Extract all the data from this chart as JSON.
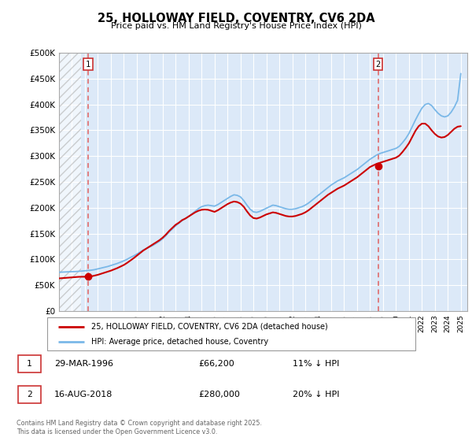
{
  "title": "25, HOLLOWAY FIELD, COVENTRY, CV6 2DA",
  "subtitle": "Price paid vs. HM Land Registry's House Price Index (HPI)",
  "ytick_values": [
    0,
    50000,
    100000,
    150000,
    200000,
    250000,
    300000,
    350000,
    400000,
    450000,
    500000
  ],
  "ylim": [
    0,
    500000
  ],
  "xlim_start": 1994.0,
  "xlim_end": 2025.5,
  "background_color": "#dce9f8",
  "grid_color": "#ffffff",
  "line_hpi_color": "#7ab8e8",
  "line_price_color": "#cc0000",
  "vline1_x": 1996.24,
  "vline2_x": 2018.62,
  "marker1_x": 1996.24,
  "marker1_y": 66200,
  "marker2_x": 2018.62,
  "marker2_y": 280000,
  "legend_line1": "25, HOLLOWAY FIELD, COVENTRY, CV6 2DA (detached house)",
  "legend_line2": "HPI: Average price, detached house, Coventry",
  "table_rows": [
    [
      "1",
      "29-MAR-1996",
      "£66,200",
      "11% ↓ HPI"
    ],
    [
      "2",
      "16-AUG-2018",
      "£280,000",
      "20% ↓ HPI"
    ]
  ],
  "footer": "Contains HM Land Registry data © Crown copyright and database right 2025.\nThis data is licensed under the Open Government Licence v3.0.",
  "hpi_x": [
    1994,
    1994.25,
    1994.5,
    1994.75,
    1995,
    1995.25,
    1995.5,
    1995.75,
    1996,
    1996.25,
    1996.5,
    1996.75,
    1997,
    1997.25,
    1997.5,
    1997.75,
    1998,
    1998.25,
    1998.5,
    1998.75,
    1999,
    1999.25,
    1999.5,
    1999.75,
    2000,
    2000.25,
    2000.5,
    2000.75,
    2001,
    2001.25,
    2001.5,
    2001.75,
    2002,
    2002.25,
    2002.5,
    2002.75,
    2003,
    2003.25,
    2003.5,
    2003.75,
    2004,
    2004.25,
    2004.5,
    2004.75,
    2005,
    2005.25,
    2005.5,
    2005.75,
    2006,
    2006.25,
    2006.5,
    2006.75,
    2007,
    2007.25,
    2007.5,
    2007.75,
    2008,
    2008.25,
    2008.5,
    2008.75,
    2009,
    2009.25,
    2009.5,
    2009.75,
    2010,
    2010.25,
    2010.5,
    2010.75,
    2011,
    2011.25,
    2011.5,
    2011.75,
    2012,
    2012.25,
    2012.5,
    2012.75,
    2013,
    2013.25,
    2013.5,
    2013.75,
    2014,
    2014.25,
    2014.5,
    2014.75,
    2015,
    2015.25,
    2015.5,
    2015.75,
    2016,
    2016.25,
    2016.5,
    2016.75,
    2017,
    2017.25,
    2017.5,
    2017.75,
    2018,
    2018.25,
    2018.5,
    2018.75,
    2019,
    2019.25,
    2019.5,
    2019.75,
    2020,
    2020.25,
    2020.5,
    2020.75,
    2021,
    2021.25,
    2021.5,
    2021.75,
    2022,
    2022.25,
    2022.5,
    2022.75,
    2023,
    2023.25,
    2023.5,
    2023.75,
    2024,
    2024.25,
    2024.5,
    2024.75,
    2025
  ],
  "hpi_y": [
    75000,
    75200,
    75500,
    75800,
    76000,
    76300,
    76700,
    77200,
    77800,
    78300,
    79000,
    80000,
    81500,
    83000,
    84500,
    86000,
    88000,
    90000,
    92000,
    94500,
    97000,
    100000,
    103500,
    106500,
    110000,
    114000,
    118000,
    121000,
    124000,
    127000,
    131000,
    135000,
    140000,
    146000,
    153000,
    159000,
    165000,
    170000,
    175000,
    179000,
    183000,
    188000,
    193000,
    198000,
    202000,
    204000,
    205000,
    204000,
    203000,
    206000,
    210000,
    214000,
    218000,
    222000,
    225000,
    224000,
    221000,
    214000,
    205000,
    197000,
    192000,
    191000,
    193000,
    196000,
    199000,
    202000,
    205000,
    204000,
    202000,
    200000,
    198000,
    197000,
    197000,
    198000,
    200000,
    202000,
    205000,
    209000,
    214000,
    219000,
    224000,
    229000,
    234000,
    239000,
    244000,
    248000,
    252000,
    255000,
    258000,
    262000,
    266000,
    270000,
    274000,
    279000,
    284000,
    289000,
    294000,
    298000,
    302000,
    305000,
    307000,
    309000,
    311000,
    313000,
    315000,
    319000,
    326000,
    334000,
    344000,
    357000,
    370000,
    382000,
    393000,
    400000,
    402000,
    398000,
    390000,
    383000,
    378000,
    376000,
    378000,
    385000,
    395000,
    408000,
    460000
  ],
  "price_x": [
    1994,
    1994.25,
    1994.5,
    1994.75,
    1995,
    1995.25,
    1995.5,
    1995.75,
    1996,
    1996.25,
    1996.5,
    1996.75,
    1997,
    1997.25,
    1997.5,
    1997.75,
    1998,
    1998.25,
    1998.5,
    1998.75,
    1999,
    1999.25,
    1999.5,
    1999.75,
    2000,
    2000.25,
    2000.5,
    2000.75,
    2001,
    2001.25,
    2001.5,
    2001.75,
    2002,
    2002.25,
    2002.5,
    2002.75,
    2003,
    2003.25,
    2003.5,
    2003.75,
    2004,
    2004.25,
    2004.5,
    2004.75,
    2005,
    2005.25,
    2005.5,
    2005.75,
    2006,
    2006.25,
    2006.5,
    2006.75,
    2007,
    2007.25,
    2007.5,
    2007.75,
    2008,
    2008.25,
    2008.5,
    2008.75,
    2009,
    2009.25,
    2009.5,
    2009.75,
    2010,
    2010.25,
    2010.5,
    2010.75,
    2011,
    2011.25,
    2011.5,
    2011.75,
    2012,
    2012.25,
    2012.5,
    2012.75,
    2013,
    2013.25,
    2013.5,
    2013.75,
    2014,
    2014.25,
    2014.5,
    2014.75,
    2015,
    2015.25,
    2015.5,
    2015.75,
    2016,
    2016.25,
    2016.5,
    2016.75,
    2017,
    2017.25,
    2017.5,
    2017.75,
    2018,
    2018.25,
    2018.5,
    2018.75,
    2019,
    2019.25,
    2019.5,
    2019.75,
    2020,
    2020.25,
    2020.5,
    2020.75,
    2021,
    2021.25,
    2021.5,
    2021.75,
    2022,
    2022.25,
    2022.5,
    2022.75,
    2023,
    2023.25,
    2023.5,
    2023.75,
    2024,
    2024.25,
    2024.5,
    2024.75,
    2025
  ],
  "price_y": [
    63000,
    63500,
    64000,
    64500,
    65000,
    65500,
    66000,
    66200,
    66200,
    66200,
    67000,
    68500,
    70000,
    72000,
    74000,
    76000,
    78000,
    80500,
    83000,
    86000,
    89000,
    93000,
    97500,
    102000,
    107000,
    112000,
    117000,
    121000,
    125000,
    129000,
    133000,
    137000,
    142000,
    148000,
    155000,
    161000,
    167000,
    171000,
    176000,
    179000,
    183000,
    187000,
    191000,
    194000,
    196000,
    196500,
    196000,
    194000,
    192000,
    195000,
    199000,
    203000,
    207000,
    210000,
    212000,
    211000,
    208000,
    202000,
    193000,
    185000,
    180000,
    179000,
    181000,
    184000,
    187000,
    189000,
    191000,
    190000,
    188000,
    186000,
    184000,
    183000,
    183000,
    184000,
    186000,
    188000,
    191000,
    195000,
    200000,
    205000,
    210000,
    215000,
    220000,
    225000,
    229000,
    233000,
    237000,
    240000,
    243000,
    247000,
    251000,
    255000,
    259000,
    264000,
    269000,
    274000,
    279000,
    282000,
    285000,
    287000,
    289000,
    291000,
    293000,
    295000,
    297000,
    301000,
    308000,
    316000,
    325000,
    337000,
    349000,
    358000,
    363000,
    363000,
    358000,
    350000,
    343000,
    338000,
    336000,
    337000,
    341000,
    347000,
    353000,
    357000,
    358000
  ]
}
